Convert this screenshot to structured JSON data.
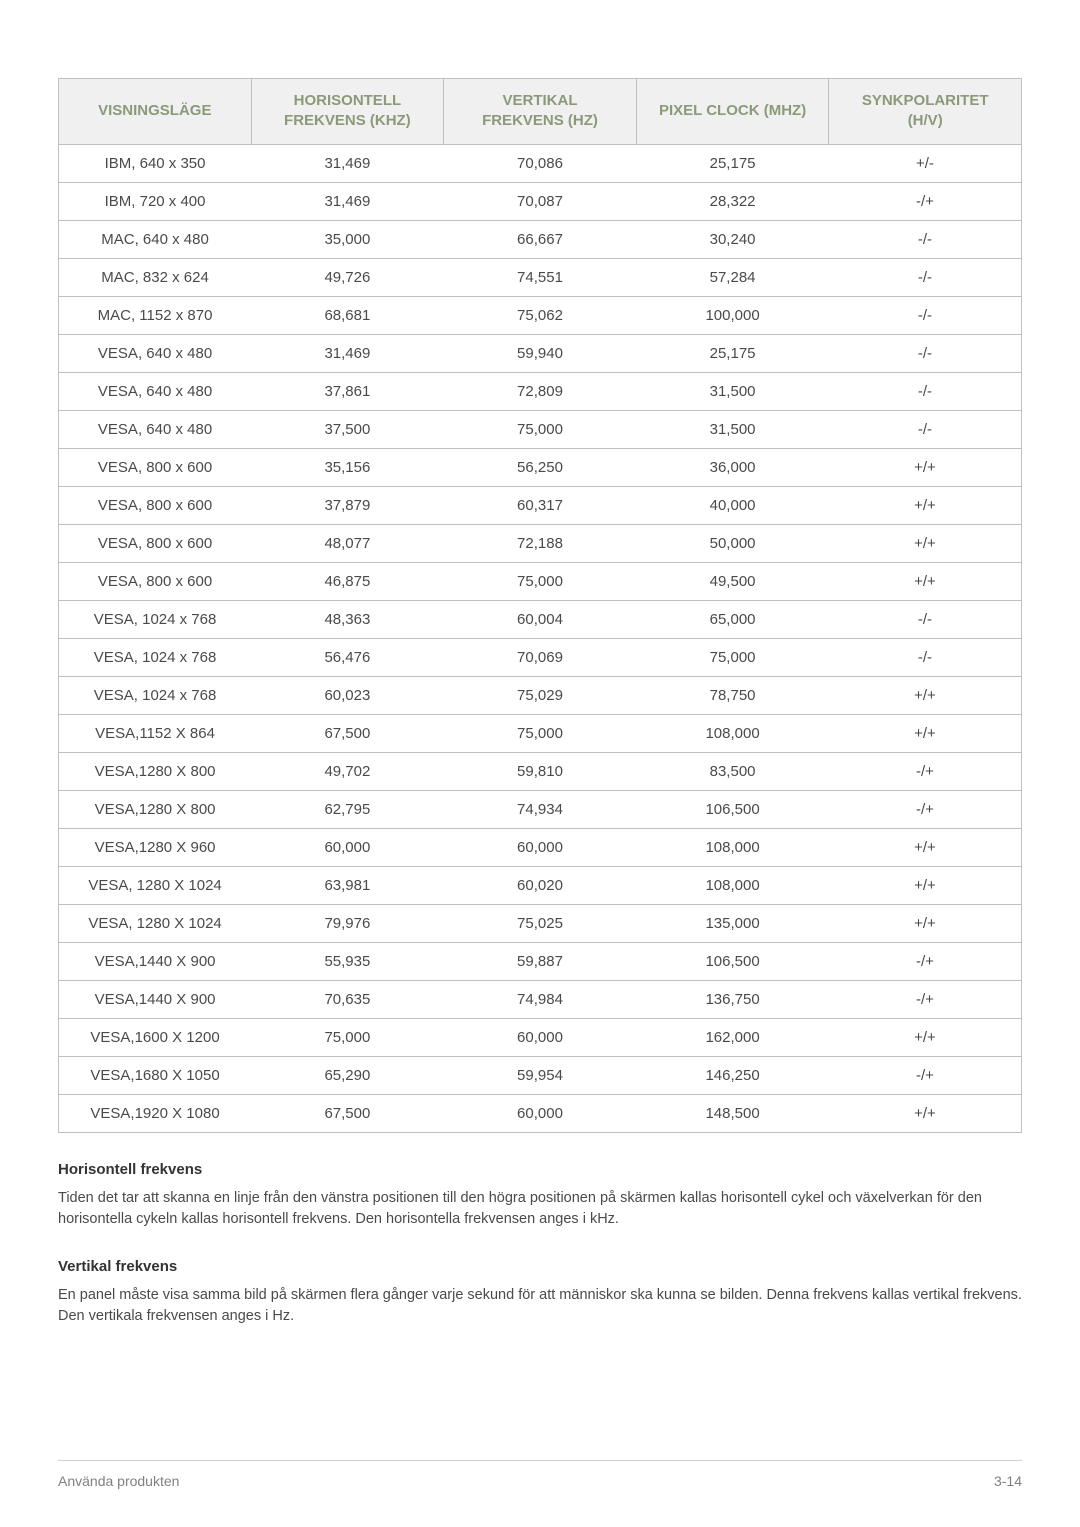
{
  "table": {
    "columns": [
      "VISNINGSLÄGE",
      "HORISONTELL FREKVENS (KHZ)",
      "VERTIKAL FREKVENS (HZ)",
      "PIXEL CLOCK (MHZ)",
      "SYNKPOLARITET (H/V)"
    ],
    "header_bg": "#f0f0f0",
    "header_color": "#8a9a7a",
    "border_color": "#c0c0c0",
    "text_color": "#4a4a4a",
    "rows": [
      [
        "IBM, 640 x 350",
        "31,469",
        "70,086",
        "25,175",
        "+/-"
      ],
      [
        "IBM, 720 x 400",
        "31,469",
        "70,087",
        "28,322",
        "-/+"
      ],
      [
        "MAC, 640 x 480",
        "35,000",
        "66,667",
        "30,240",
        "-/-"
      ],
      [
        "MAC, 832 x 624",
        "49,726",
        "74,551",
        "57,284",
        "-/-"
      ],
      [
        "MAC, 1152 x 870",
        "68,681",
        "75,062",
        "100,000",
        "-/-"
      ],
      [
        "VESA, 640 x 480",
        "31,469",
        "59,940",
        "25,175",
        "-/-"
      ],
      [
        "VESA, 640 x 480",
        "37,861",
        "72,809",
        "31,500",
        "-/-"
      ],
      [
        "VESA, 640 x 480",
        "37,500",
        "75,000",
        "31,500",
        "-/-"
      ],
      [
        "VESA, 800 x 600",
        "35,156",
        "56,250",
        "36,000",
        "+/+"
      ],
      [
        "VESA, 800 x 600",
        "37,879",
        "60,317",
        "40,000",
        "+/+"
      ],
      [
        "VESA, 800 x 600",
        "48,077",
        "72,188",
        "50,000",
        "+/+"
      ],
      [
        "VESA, 800 x 600",
        "46,875",
        "75,000",
        "49,500",
        "+/+"
      ],
      [
        "VESA, 1024 x 768",
        "48,363",
        "60,004",
        "65,000",
        "-/-"
      ],
      [
        "VESA, 1024 x 768",
        "56,476",
        "70,069",
        "75,000",
        "-/-"
      ],
      [
        "VESA, 1024 x 768",
        "60,023",
        "75,029",
        "78,750",
        "+/+"
      ],
      [
        "VESA,1152 X 864",
        "67,500",
        "75,000",
        "108,000",
        "+/+"
      ],
      [
        "VESA,1280 X 800",
        "49,702",
        "59,810",
        "83,500",
        "-/+"
      ],
      [
        "VESA,1280 X 800",
        "62,795",
        "74,934",
        "106,500",
        "-/+"
      ],
      [
        "VESA,1280 X 960",
        "60,000",
        "60,000",
        "108,000",
        "+/+"
      ],
      [
        "VESA, 1280 X 1024",
        "63,981",
        "60,020",
        "108,000",
        "+/+"
      ],
      [
        "VESA, 1280 X 1024",
        "79,976",
        "75,025",
        "135,000",
        "+/+"
      ],
      [
        "VESA,1440 X 900",
        "55,935",
        "59,887",
        "106,500",
        "-/+"
      ],
      [
        "VESA,1440 X 900",
        "70,635",
        "74,984",
        "136,750",
        "-/+"
      ],
      [
        "VESA,1600 X 1200",
        "75,000",
        "60,000",
        "162,000",
        "+/+"
      ],
      [
        "VESA,1680 X 1050",
        "65,290",
        "59,954",
        "146,250",
        "-/+"
      ],
      [
        "VESA,1920 X 1080",
        "67,500",
        "60,000",
        "148,500",
        "+/+"
      ]
    ]
  },
  "sections": [
    {
      "heading": "Horisontell frekvens",
      "text": "Tiden det tar att skanna en linje från den vänstra positionen till den högra positionen på skärmen kallas horisontell cykel och växelverkan för den horisontella cykeln kallas horisontell frekvens. Den horisontella frekvensen anges i kHz."
    },
    {
      "heading": "Vertikal frekvens",
      "text": "En panel måste visa samma bild på skärmen flera gånger varje sekund för att människor ska kunna se bilden. Denna frekvens kallas vertikal frekvens. Den vertikala frekvensen anges i Hz."
    }
  ],
  "footer": {
    "left": "Använda produkten",
    "right": "3-14"
  }
}
